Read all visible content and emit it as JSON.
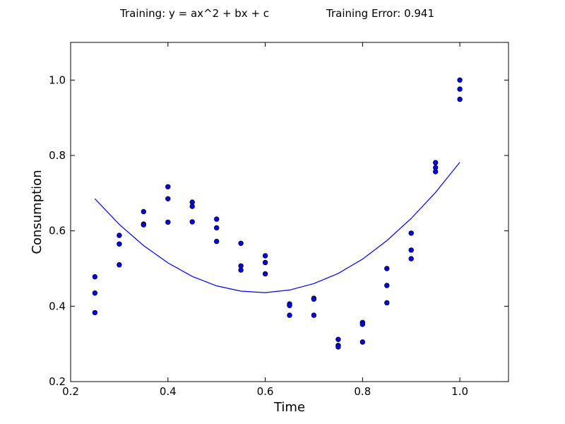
{
  "chart_data": {
    "type": "scatter",
    "title_left": "Training: y = ax^2 + bx + c",
    "title_right": "Training Error: 0.941",
    "xlabel": "Time",
    "ylabel": "Consumption",
    "xlim": [
      0.2,
      1.1
    ],
    "ylim": [
      0.2,
      1.1
    ],
    "xticks": [
      0.2,
      0.4,
      0.6,
      0.8,
      1.0
    ],
    "xtick_labels": [
      "0.2",
      "0.4",
      "0.6",
      "0.8",
      "1.0"
    ],
    "yticks": [
      0.2,
      0.4,
      0.6,
      0.8,
      1.0
    ],
    "ytick_labels": [
      "0.2",
      "0.4",
      "0.6",
      "0.8",
      "1.0"
    ],
    "grid": false,
    "colors": {
      "points": "#0000ff",
      "fit_line": "#0000ff",
      "point_edge": "#000000"
    },
    "points": [
      {
        "x": 0.25,
        "y": 0.478
      },
      {
        "x": 0.25,
        "y": 0.435
      },
      {
        "x": 0.25,
        "y": 0.383
      },
      {
        "x": 0.3,
        "y": 0.588
      },
      {
        "x": 0.3,
        "y": 0.565
      },
      {
        "x": 0.3,
        "y": 0.51
      },
      {
        "x": 0.35,
        "y": 0.651
      },
      {
        "x": 0.35,
        "y": 0.618
      },
      {
        "x": 0.35,
        "y": 0.616
      },
      {
        "x": 0.4,
        "y": 0.717
      },
      {
        "x": 0.4,
        "y": 0.685
      },
      {
        "x": 0.4,
        "y": 0.623
      },
      {
        "x": 0.45,
        "y": 0.676
      },
      {
        "x": 0.45,
        "y": 0.665
      },
      {
        "x": 0.45,
        "y": 0.624
      },
      {
        "x": 0.5,
        "y": 0.631
      },
      {
        "x": 0.5,
        "y": 0.608
      },
      {
        "x": 0.5,
        "y": 0.572
      },
      {
        "x": 0.55,
        "y": 0.567
      },
      {
        "x": 0.55,
        "y": 0.507
      },
      {
        "x": 0.55,
        "y": 0.496
      },
      {
        "x": 0.6,
        "y": 0.534
      },
      {
        "x": 0.6,
        "y": 0.516
      },
      {
        "x": 0.6,
        "y": 0.486
      },
      {
        "x": 0.65,
        "y": 0.406
      },
      {
        "x": 0.65,
        "y": 0.402
      },
      {
        "x": 0.65,
        "y": 0.376
      },
      {
        "x": 0.7,
        "y": 0.421
      },
      {
        "x": 0.7,
        "y": 0.419
      },
      {
        "x": 0.7,
        "y": 0.376
      },
      {
        "x": 0.75,
        "y": 0.312
      },
      {
        "x": 0.75,
        "y": 0.296
      },
      {
        "x": 0.75,
        "y": 0.292
      },
      {
        "x": 0.8,
        "y": 0.357
      },
      {
        "x": 0.8,
        "y": 0.352
      },
      {
        "x": 0.8,
        "y": 0.305
      },
      {
        "x": 0.85,
        "y": 0.5
      },
      {
        "x": 0.85,
        "y": 0.455
      },
      {
        "x": 0.85,
        "y": 0.409
      },
      {
        "x": 0.9,
        "y": 0.594
      },
      {
        "x": 0.9,
        "y": 0.549
      },
      {
        "x": 0.9,
        "y": 0.526
      },
      {
        "x": 0.95,
        "y": 0.781
      },
      {
        "x": 0.95,
        "y": 0.768
      },
      {
        "x": 0.95,
        "y": 0.757
      },
      {
        "x": 1.0,
        "y": 1.0
      },
      {
        "x": 1.0,
        "y": 0.976
      },
      {
        "x": 1.0,
        "y": 0.949
      }
    ],
    "fit_line": {
      "x": [
        0.25,
        0.3,
        0.35,
        0.4,
        0.45,
        0.5,
        0.55,
        0.6,
        0.65,
        0.7,
        0.75,
        0.8,
        0.85,
        0.9,
        0.95,
        1.0
      ],
      "y": [
        0.685,
        0.617,
        0.561,
        0.515,
        0.479,
        0.454,
        0.44,
        0.436,
        0.443,
        0.46,
        0.487,
        0.525,
        0.574,
        0.633,
        0.702,
        0.782
      ]
    }
  }
}
